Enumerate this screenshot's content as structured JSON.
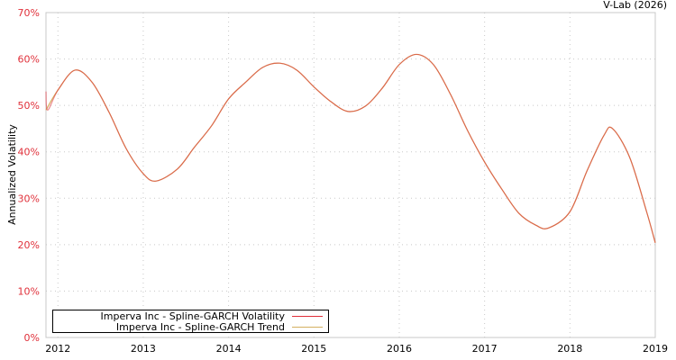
{
  "credit": "V-Lab (2026)",
  "chart_data": {
    "type": "line",
    "title": "",
    "xlabel": "",
    "ylabel": "Annualized Volatility",
    "xlim": [
      2011.86,
      2019.0
    ],
    "ylim": [
      0,
      70
    ],
    "x_ticks": [
      "2012",
      "2013",
      "2014",
      "2015",
      "2016",
      "2017",
      "2018",
      "2019"
    ],
    "y_ticks": [
      "0%",
      "10%",
      "20%",
      "30%",
      "40%",
      "50%",
      "60%",
      "70%"
    ],
    "grid": true,
    "legend_position": "bottom-left",
    "series": [
      {
        "name": "Imperva Inc - Spline-GARCH Volatility",
        "color": "#e0303a",
        "x": [
          2011.86,
          2011.88,
          2012.0,
          2012.2,
          2012.4,
          2012.6,
          2012.8,
          2013.0,
          2013.15,
          2013.4,
          2013.6,
          2013.8,
          2014.0,
          2014.2,
          2014.4,
          2014.6,
          2014.8,
          2015.0,
          2015.2,
          2015.4,
          2015.6,
          2015.8,
          2016.0,
          2016.2,
          2016.4,
          2016.6,
          2016.8,
          2017.0,
          2017.2,
          2017.4,
          2017.6,
          2017.75,
          2018.0,
          2018.2,
          2018.4,
          2018.5,
          2018.7,
          2018.9,
          2019.0
        ],
        "y": [
          53.0,
          49.0,
          53.3,
          57.6,
          55.0,
          48.5,
          40.7,
          35.3,
          33.7,
          36.3,
          41.0,
          45.6,
          51.4,
          55.0,
          58.2,
          59.1,
          57.6,
          54.0,
          50.8,
          48.7,
          49.8,
          53.7,
          58.8,
          61.0,
          58.8,
          52.4,
          44.6,
          37.8,
          32.0,
          26.8,
          24.2,
          23.6,
          27.1,
          35.9,
          43.6,
          45.0,
          38.8,
          27.0,
          20.4
        ]
      },
      {
        "name": "Imperva Inc - Spline-GARCH Trend",
        "color": "#d4b060",
        "x": [
          2011.86,
          2012.0,
          2012.2,
          2012.4,
          2012.6,
          2012.8,
          2013.0,
          2013.15,
          2013.4,
          2013.6,
          2013.8,
          2014.0,
          2014.2,
          2014.4,
          2014.6,
          2014.8,
          2015.0,
          2015.2,
          2015.4,
          2015.6,
          2015.8,
          2016.0,
          2016.2,
          2016.4,
          2016.6,
          2016.8,
          2017.0,
          2017.2,
          2017.4,
          2017.6,
          2017.75,
          2018.0,
          2018.2,
          2018.4,
          2018.5,
          2018.7,
          2018.9,
          2019.0
        ],
        "y": [
          49.0,
          53.3,
          57.6,
          55.0,
          48.5,
          40.7,
          35.3,
          33.7,
          36.3,
          41.0,
          45.6,
          51.4,
          55.0,
          58.2,
          59.1,
          57.6,
          54.0,
          50.8,
          48.7,
          49.8,
          53.7,
          58.8,
          61.0,
          58.8,
          52.4,
          44.6,
          37.8,
          32.0,
          26.8,
          24.2,
          23.6,
          27.1,
          35.9,
          43.6,
          45.0,
          38.8,
          27.0,
          20.4
        ]
      }
    ]
  }
}
